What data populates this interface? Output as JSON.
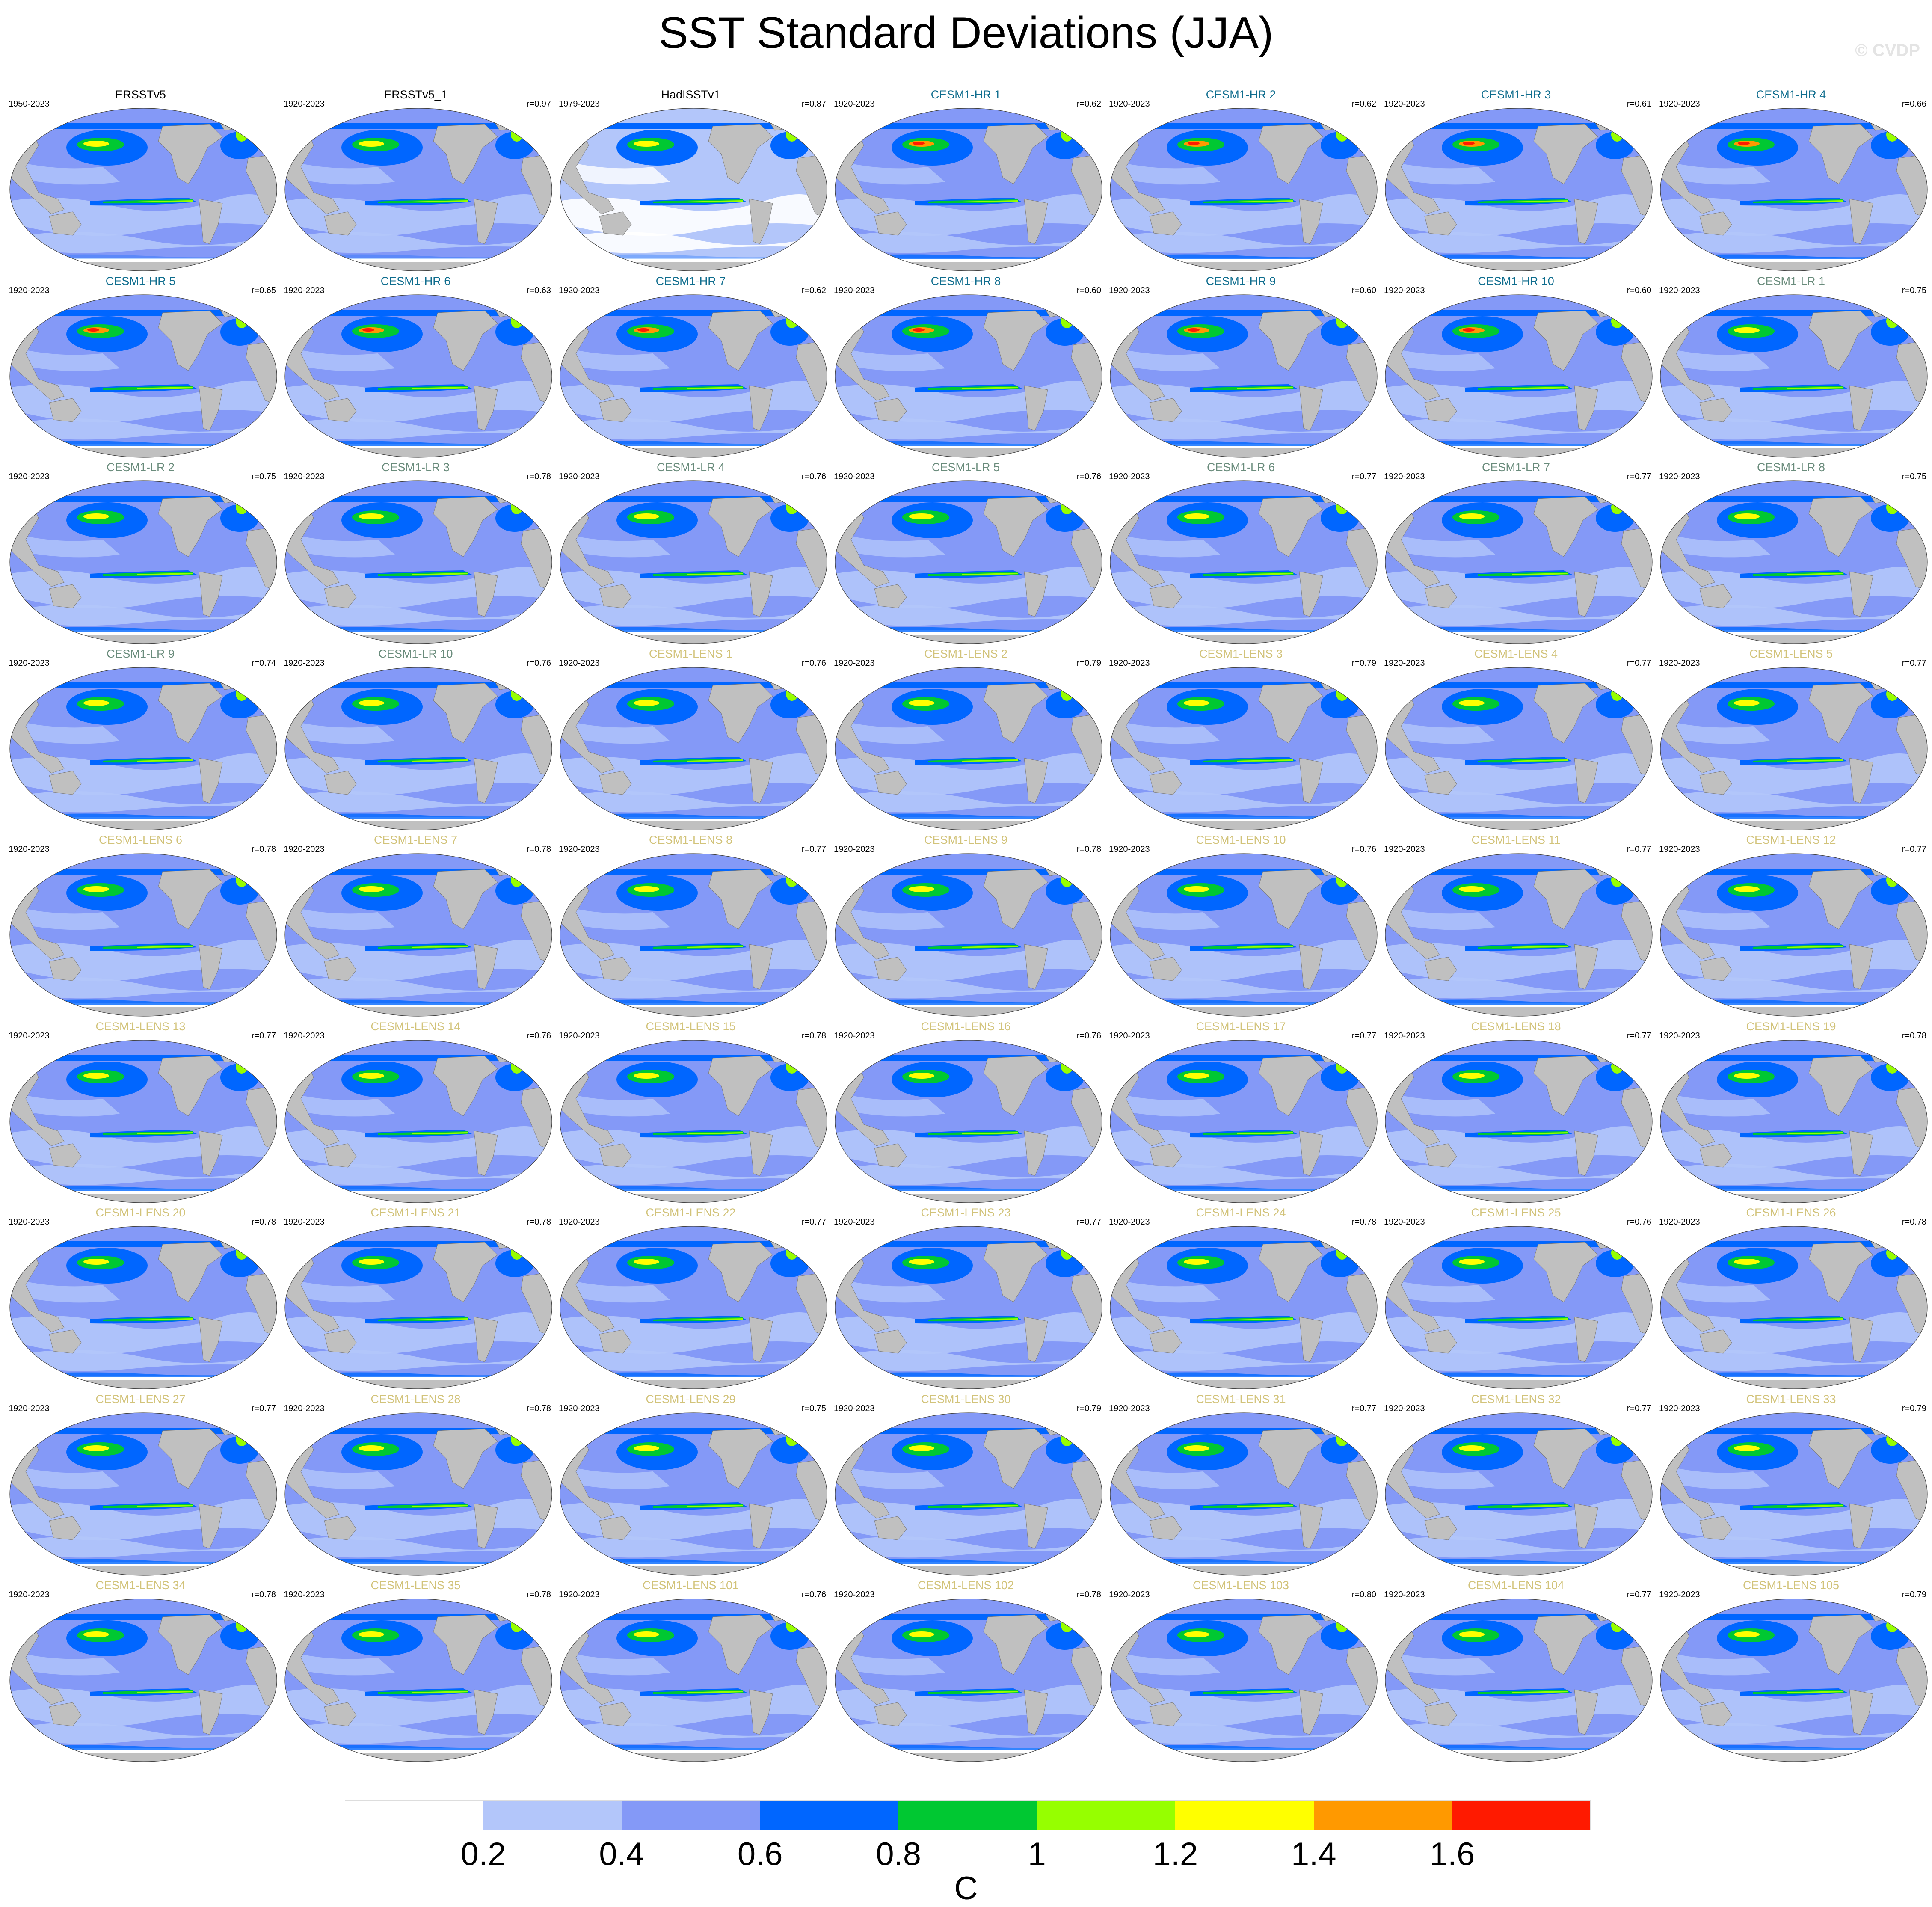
{
  "figure": {
    "title": "SST Standard Deviations (JJA)",
    "credit": "© CVDP"
  },
  "colorbar": {
    "colors": [
      "#ffffff",
      "#b3c6fa",
      "#8499f7",
      "#0066ff",
      "#00c832",
      "#96ff00",
      "#ffff00",
      "#ff9900",
      "#ff1a00"
    ],
    "ticks": [
      "0.2",
      "0.4",
      "0.6",
      "0.8",
      "1",
      "1.2",
      "1.4",
      "1.6"
    ],
    "unit": "C"
  },
  "colors": {
    "observations_title": "#000000",
    "cesm1_hr_title": "#0f6d8e",
    "cesm1_lr_title": "#6a8c7c",
    "cesm1_lens_title": "#d2c37a",
    "land": "#c0c0c0",
    "ocean_base": "#b3c6fa"
  },
  "panels": [
    {
      "name": "ERSSTv5",
      "years": "1950-2023",
      "r": "",
      "group": "obs"
    },
    {
      "name": "ERSSTv5_1",
      "years": "1920-2023",
      "r": "r=0.97",
      "group": "obs"
    },
    {
      "name": "HadISSTv1",
      "years": "1979-2023",
      "r": "r=0.87",
      "group": "obs"
    },
    {
      "name": "CESM1-HR 1",
      "years": "1920-2023",
      "r": "r=0.62",
      "group": "hr"
    },
    {
      "name": "CESM1-HR 2",
      "years": "1920-2023",
      "r": "r=0.62",
      "group": "hr"
    },
    {
      "name": "CESM1-HR 3",
      "years": "1920-2023",
      "r": "r=0.61",
      "group": "hr"
    },
    {
      "name": "CESM1-HR 4",
      "years": "1920-2023",
      "r": "r=0.66",
      "group": "hr"
    },
    {
      "name": "CESM1-HR 5",
      "years": "1920-2023",
      "r": "r=0.65",
      "group": "hr"
    },
    {
      "name": "CESM1-HR 6",
      "years": "1920-2023",
      "r": "r=0.63",
      "group": "hr"
    },
    {
      "name": "CESM1-HR 7",
      "years": "1920-2023",
      "r": "r=0.62",
      "group": "hr"
    },
    {
      "name": "CESM1-HR 8",
      "years": "1920-2023",
      "r": "r=0.60",
      "group": "hr"
    },
    {
      "name": "CESM1-HR 9",
      "years": "1920-2023",
      "r": "r=0.60",
      "group": "hr"
    },
    {
      "name": "CESM1-HR 10",
      "years": "1920-2023",
      "r": "r=0.60",
      "group": "hr"
    },
    {
      "name": "CESM1-LR 1",
      "years": "1920-2023",
      "r": "r=0.75",
      "group": "lr"
    },
    {
      "name": "CESM1-LR 2",
      "years": "1920-2023",
      "r": "r=0.75",
      "group": "lr"
    },
    {
      "name": "CESM1-LR 3",
      "years": "1920-2023",
      "r": "r=0.78",
      "group": "lr"
    },
    {
      "name": "CESM1-LR 4",
      "years": "1920-2023",
      "r": "r=0.76",
      "group": "lr"
    },
    {
      "name": "CESM1-LR 5",
      "years": "1920-2023",
      "r": "r=0.76",
      "group": "lr"
    },
    {
      "name": "CESM1-LR 6",
      "years": "1920-2023",
      "r": "r=0.77",
      "group": "lr"
    },
    {
      "name": "CESM1-LR 7",
      "years": "1920-2023",
      "r": "r=0.77",
      "group": "lr"
    },
    {
      "name": "CESM1-LR 8",
      "years": "1920-2023",
      "r": "r=0.75",
      "group": "lr"
    },
    {
      "name": "CESM1-LR 9",
      "years": "1920-2023",
      "r": "r=0.74",
      "group": "lr"
    },
    {
      "name": "CESM1-LR 10",
      "years": "1920-2023",
      "r": "r=0.76",
      "group": "lr"
    },
    {
      "name": "CESM1-LENS 1",
      "years": "1920-2023",
      "r": "r=0.76",
      "group": "lens"
    },
    {
      "name": "CESM1-LENS 2",
      "years": "1920-2023",
      "r": "r=0.79",
      "group": "lens"
    },
    {
      "name": "CESM1-LENS 3",
      "years": "1920-2023",
      "r": "r=0.79",
      "group": "lens"
    },
    {
      "name": "CESM1-LENS 4",
      "years": "1920-2023",
      "r": "r=0.77",
      "group": "lens"
    },
    {
      "name": "CESM1-LENS 5",
      "years": "1920-2023",
      "r": "r=0.77",
      "group": "lens"
    },
    {
      "name": "CESM1-LENS 6",
      "years": "1920-2023",
      "r": "r=0.78",
      "group": "lens"
    },
    {
      "name": "CESM1-LENS 7",
      "years": "1920-2023",
      "r": "r=0.78",
      "group": "lens"
    },
    {
      "name": "CESM1-LENS 8",
      "years": "1920-2023",
      "r": "r=0.77",
      "group": "lens"
    },
    {
      "name": "CESM1-LENS 9",
      "years": "1920-2023",
      "r": "r=0.78",
      "group": "lens"
    },
    {
      "name": "CESM1-LENS 10",
      "years": "1920-2023",
      "r": "r=0.76",
      "group": "lens"
    },
    {
      "name": "CESM1-LENS 11",
      "years": "1920-2023",
      "r": "r=0.77",
      "group": "lens"
    },
    {
      "name": "CESM1-LENS 12",
      "years": "1920-2023",
      "r": "r=0.77",
      "group": "lens"
    },
    {
      "name": "CESM1-LENS 13",
      "years": "1920-2023",
      "r": "r=0.77",
      "group": "lens"
    },
    {
      "name": "CESM1-LENS 14",
      "years": "1920-2023",
      "r": "r=0.76",
      "group": "lens"
    },
    {
      "name": "CESM1-LENS 15",
      "years": "1920-2023",
      "r": "r=0.78",
      "group": "lens"
    },
    {
      "name": "CESM1-LENS 16",
      "years": "1920-2023",
      "r": "r=0.76",
      "group": "lens"
    },
    {
      "name": "CESM1-LENS 17",
      "years": "1920-2023",
      "r": "r=0.77",
      "group": "lens"
    },
    {
      "name": "CESM1-LENS 18",
      "years": "1920-2023",
      "r": "r=0.77",
      "group": "lens"
    },
    {
      "name": "CESM1-LENS 19",
      "years": "1920-2023",
      "r": "r=0.78",
      "group": "lens"
    },
    {
      "name": "CESM1-LENS 20",
      "years": "1920-2023",
      "r": "r=0.78",
      "group": "lens"
    },
    {
      "name": "CESM1-LENS 21",
      "years": "1920-2023",
      "r": "r=0.78",
      "group": "lens"
    },
    {
      "name": "CESM1-LENS 22",
      "years": "1920-2023",
      "r": "r=0.77",
      "group": "lens"
    },
    {
      "name": "CESM1-LENS 23",
      "years": "1920-2023",
      "r": "r=0.77",
      "group": "lens"
    },
    {
      "name": "CESM1-LENS 24",
      "years": "1920-2023",
      "r": "r=0.78",
      "group": "lens"
    },
    {
      "name": "CESM1-LENS 25",
      "years": "1920-2023",
      "r": "r=0.76",
      "group": "lens"
    },
    {
      "name": "CESM1-LENS 26",
      "years": "1920-2023",
      "r": "r=0.78",
      "group": "lens"
    },
    {
      "name": "CESM1-LENS 27",
      "years": "1920-2023",
      "r": "r=0.77",
      "group": "lens"
    },
    {
      "name": "CESM1-LENS 28",
      "years": "1920-2023",
      "r": "r=0.78",
      "group": "lens"
    },
    {
      "name": "CESM1-LENS 29",
      "years": "1920-2023",
      "r": "r=0.75",
      "group": "lens"
    },
    {
      "name": "CESM1-LENS 30",
      "years": "1920-2023",
      "r": "r=0.79",
      "group": "lens"
    },
    {
      "name": "CESM1-LENS 31",
      "years": "1920-2023",
      "r": "r=0.77",
      "group": "lens"
    },
    {
      "name": "CESM1-LENS 32",
      "years": "1920-2023",
      "r": "r=0.77",
      "group": "lens"
    },
    {
      "name": "CESM1-LENS 33",
      "years": "1920-2023",
      "r": "r=0.79",
      "group": "lens"
    },
    {
      "name": "CESM1-LENS 34",
      "years": "1920-2023",
      "r": "r=0.78",
      "group": "lens"
    },
    {
      "name": "CESM1-LENS 35",
      "years": "1920-2023",
      "r": "r=0.78",
      "group": "lens"
    },
    {
      "name": "CESM1-LENS 101",
      "years": "1920-2023",
      "r": "r=0.76",
      "group": "lens"
    },
    {
      "name": "CESM1-LENS 102",
      "years": "1920-2023",
      "r": "r=0.78",
      "group": "lens"
    },
    {
      "name": "CESM1-LENS 103",
      "years": "1920-2023",
      "r": "r=0.80",
      "group": "lens"
    },
    {
      "name": "CESM1-LENS 104",
      "years": "1920-2023",
      "r": "r=0.77",
      "group": "lens"
    },
    {
      "name": "CESM1-LENS 105",
      "years": "1920-2023",
      "r": "r=0.79",
      "group": "lens"
    }
  ]
}
